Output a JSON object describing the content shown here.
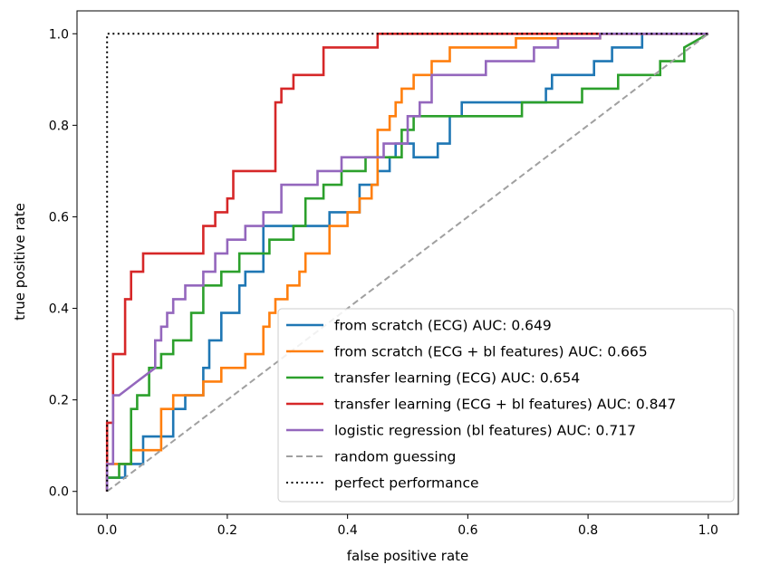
{
  "chart_data": {
    "type": "line",
    "xlabel": "false positive rate",
    "ylabel": "true positive rate",
    "xlim": [
      -0.05,
      1.05
    ],
    "ylim": [
      -0.05,
      1.05
    ],
    "xticks": [
      0.0,
      0.2,
      0.4,
      0.6,
      0.8,
      1.0
    ],
    "xtick_labels": [
      "0.0",
      "0.2",
      "0.4",
      "0.6",
      "0.8",
      "1.0"
    ],
    "yticks": [
      0.0,
      0.2,
      0.4,
      0.6,
      0.8,
      1.0
    ],
    "ytick_labels": [
      "0.0",
      "0.2",
      "0.4",
      "0.6",
      "0.8",
      "1.0"
    ],
    "grid": false,
    "legend_position": "lower right",
    "series": [
      {
        "name": "from scratch (ECG) AUC: 0.649",
        "color": "#1f77b4",
        "style": "solid",
        "x": [
          0,
          0,
          0.03,
          0.03,
          0.06,
          0.06,
          0.11,
          0.11,
          0.13,
          0.13,
          0.16,
          0.16,
          0.17,
          0.17,
          0.19,
          0.19,
          0.22,
          0.22,
          0.23,
          0.23,
          0.26,
          0.26,
          0.37,
          0.37,
          0.42,
          0.42,
          0.45,
          0.45,
          0.47,
          0.47,
          0.48,
          0.48,
          0.51,
          0.51,
          0.55,
          0.55,
          0.57,
          0.57,
          0.59,
          0.59,
          0.73,
          0.73,
          0.74,
          0.74,
          0.75,
          0.75,
          0.81,
          0.81,
          0.84,
          0.84,
          0.89,
          0.89,
          1.0
        ],
        "y": [
          0,
          0.03,
          0.03,
          0.06,
          0.06,
          0.12,
          0.12,
          0.18,
          0.18,
          0.21,
          0.21,
          0.27,
          0.27,
          0.33,
          0.33,
          0.39,
          0.39,
          0.45,
          0.45,
          0.48,
          0.48,
          0.58,
          0.58,
          0.61,
          0.61,
          0.67,
          0.67,
          0.7,
          0.7,
          0.73,
          0.73,
          0.76,
          0.76,
          0.73,
          0.73,
          0.76,
          0.76,
          0.82,
          0.82,
          0.85,
          0.85,
          0.88,
          0.88,
          0.91,
          0.91,
          0.91,
          0.91,
          0.94,
          0.94,
          0.97,
          0.97,
          1.0,
          1.0
        ]
      },
      {
        "name": "from scratch (ECG + bl features) AUC: 0.665",
        "color": "#ff7f0e",
        "style": "solid",
        "x": [
          0,
          0,
          0.04,
          0.04,
          0.09,
          0.09,
          0.11,
          0.11,
          0.16,
          0.16,
          0.19,
          0.19,
          0.23,
          0.23,
          0.26,
          0.26,
          0.27,
          0.27,
          0.28,
          0.28,
          0.3,
          0.3,
          0.32,
          0.32,
          0.33,
          0.33,
          0.37,
          0.37,
          0.4,
          0.4,
          0.42,
          0.42,
          0.44,
          0.44,
          0.45,
          0.45,
          0.47,
          0.47,
          0.48,
          0.48,
          0.49,
          0.49,
          0.51,
          0.51,
          0.54,
          0.54,
          0.56,
          0.56,
          0.57,
          0.57,
          0.61,
          0.61,
          0.67,
          0.67,
          0.68,
          0.68,
          0.82,
          0.82,
          1.0
        ],
        "y": [
          0,
          0.06,
          0.06,
          0.09,
          0.09,
          0.18,
          0.18,
          0.21,
          0.21,
          0.24,
          0.24,
          0.27,
          0.27,
          0.3,
          0.3,
          0.36,
          0.36,
          0.39,
          0.39,
          0.42,
          0.42,
          0.45,
          0.45,
          0.48,
          0.48,
          0.52,
          0.52,
          0.58,
          0.58,
          0.61,
          0.61,
          0.64,
          0.64,
          0.67,
          0.67,
          0.79,
          0.79,
          0.82,
          0.82,
          0.85,
          0.85,
          0.88,
          0.88,
          0.91,
          0.91,
          0.94,
          0.94,
          0.94,
          0.94,
          0.97,
          0.97,
          0.97,
          0.97,
          0.97,
          0.97,
          0.99,
          0.99,
          1.0,
          1.0
        ]
      },
      {
        "name": "transfer learning (ECG) AUC: 0.654",
        "color": "#2ca02c",
        "style": "solid",
        "x": [
          0,
          0,
          0.02,
          0.02,
          0.04,
          0.04,
          0.05,
          0.05,
          0.07,
          0.07,
          0.09,
          0.09,
          0.11,
          0.11,
          0.14,
          0.14,
          0.16,
          0.16,
          0.19,
          0.19,
          0.22,
          0.22,
          0.27,
          0.27,
          0.31,
          0.31,
          0.33,
          0.33,
          0.36,
          0.36,
          0.39,
          0.39,
          0.43,
          0.43,
          0.49,
          0.49,
          0.51,
          0.51,
          0.53,
          0.53,
          0.69,
          0.69,
          0.79,
          0.79,
          0.85,
          0.85,
          0.92,
          0.92,
          0.96,
          0.96,
          1.0
        ],
        "y": [
          0,
          0.03,
          0.03,
          0.06,
          0.06,
          0.18,
          0.18,
          0.21,
          0.21,
          0.27,
          0.27,
          0.3,
          0.3,
          0.33,
          0.33,
          0.39,
          0.39,
          0.45,
          0.45,
          0.48,
          0.48,
          0.52,
          0.52,
          0.55,
          0.55,
          0.58,
          0.58,
          0.64,
          0.64,
          0.67,
          0.67,
          0.7,
          0.7,
          0.73,
          0.73,
          0.79,
          0.79,
          0.82,
          0.82,
          0.82,
          0.82,
          0.85,
          0.85,
          0.88,
          0.88,
          0.91,
          0.91,
          0.94,
          0.94,
          0.97,
          1.0
        ]
      },
      {
        "name": "transfer learning (ECG + bl features) AUC: 0.847",
        "color": "#d62728",
        "style": "solid",
        "x": [
          0,
          0,
          0.01,
          0.01,
          0.03,
          0.03,
          0.04,
          0.04,
          0.06,
          0.06,
          0.08,
          0.08,
          0.16,
          0.16,
          0.18,
          0.18,
          0.2,
          0.2,
          0.21,
          0.21,
          0.28,
          0.28,
          0.29,
          0.29,
          0.31,
          0.31,
          0.36,
          0.36,
          0.45,
          0.45,
          0.47,
          0.47,
          1.0
        ],
        "y": [
          0,
          0.15,
          0.15,
          0.3,
          0.3,
          0.42,
          0.42,
          0.48,
          0.48,
          0.52,
          0.52,
          0.52,
          0.52,
          0.58,
          0.58,
          0.61,
          0.61,
          0.64,
          0.64,
          0.7,
          0.7,
          0.85,
          0.85,
          0.88,
          0.88,
          0.91,
          0.91,
          0.97,
          0.97,
          1.0,
          1.0,
          1.0,
          1.0
        ]
      },
      {
        "name": "logistic regression (bl features) AUC: 0.717",
        "color": "#9467bd",
        "style": "solid",
        "x": [
          0,
          0,
          0.01,
          0.01,
          0.02,
          0.02,
          0.05,
          0.08,
          0.08,
          0.09,
          0.09,
          0.1,
          0.1,
          0.11,
          0.11,
          0.13,
          0.13,
          0.16,
          0.16,
          0.18,
          0.18,
          0.2,
          0.2,
          0.23,
          0.23,
          0.26,
          0.26,
          0.29,
          0.29,
          0.35,
          0.35,
          0.39,
          0.39,
          0.46,
          0.46,
          0.5,
          0.5,
          0.52,
          0.52,
          0.54,
          0.54,
          0.63,
          0.63,
          0.71,
          0.71,
          0.75,
          0.75,
          0.82,
          0.82,
          1.0
        ],
        "y": [
          0,
          0.06,
          0.06,
          0.21,
          0.21,
          0.21,
          0.24,
          0.27,
          0.33,
          0.33,
          0.36,
          0.36,
          0.39,
          0.39,
          0.42,
          0.42,
          0.45,
          0.45,
          0.48,
          0.48,
          0.52,
          0.52,
          0.55,
          0.55,
          0.58,
          0.58,
          0.61,
          0.61,
          0.67,
          0.67,
          0.7,
          0.7,
          0.73,
          0.73,
          0.76,
          0.76,
          0.82,
          0.82,
          0.85,
          0.85,
          0.91,
          0.91,
          0.94,
          0.94,
          0.97,
          0.97,
          0.99,
          0.99,
          1.0,
          1.0
        ]
      },
      {
        "name": "random guessing",
        "color": "#a0a0a0",
        "style": "dashed",
        "x": [
          0,
          1
        ],
        "y": [
          0,
          1
        ]
      },
      {
        "name": "perfect performance",
        "color": "#000000",
        "style": "dotted",
        "x": [
          0,
          0,
          1
        ],
        "y": [
          0,
          1,
          1
        ]
      }
    ]
  }
}
